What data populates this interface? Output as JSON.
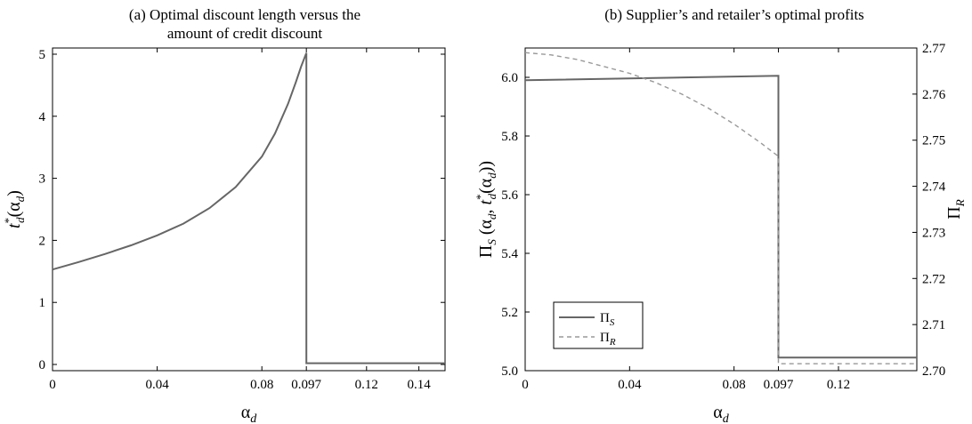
{
  "chart_data": [
    {
      "type": "line",
      "title": "(a) Optimal discount length versus the amount of credit discount",
      "title_lines": [
        "(a) Optimal discount length versus the",
        "amount of credit discount"
      ],
      "xlabel": "α_d",
      "ylabel": "t*_d(α_d)",
      "xlim": [
        0,
        0.15
      ],
      "ylim": [
        -0.1,
        5.1
      ],
      "xticks": [
        0,
        0.04,
        0.08,
        0.097,
        0.12,
        0.14
      ],
      "xtick_labels": [
        "0",
        "0.04",
        "0.08",
        "0.097",
        "0.12",
        "0.14"
      ],
      "yticks": [
        0,
        1,
        2,
        3,
        4,
        5
      ],
      "ytick_labels": [
        "0",
        "1",
        "2",
        "3",
        "4",
        "5"
      ],
      "grid": false,
      "color": "#666666",
      "series": [
        {
          "x": [
            0,
            0.01,
            0.02,
            0.03,
            0.04,
            0.05,
            0.06,
            0.07,
            0.08,
            0.085,
            0.09,
            0.093,
            0.095,
            0.097,
            0.097,
            0.15
          ],
          "y": [
            1.53,
            1.65,
            1.78,
            1.92,
            2.08,
            2.27,
            2.52,
            2.86,
            3.35,
            3.72,
            4.2,
            4.55,
            4.8,
            5.02,
            0.02,
            0.02
          ]
        }
      ]
    },
    {
      "type": "line",
      "title": "(b) Supplier’s and retailer’s optimal profits",
      "xlabel": "α_d",
      "ylabel": "Π_S(α_d, t*_d(α_d))",
      "ylabel_right": "Π_R",
      "xlim": [
        0,
        0.15
      ],
      "ylim": [
        5.0,
        6.1
      ],
      "ylim_right": [
        2.7,
        2.77
      ],
      "xticks": [
        0,
        0.04,
        0.08,
        0.097,
        0.12
      ],
      "xtick_labels": [
        "0",
        "0.04",
        "0.08",
        "0.097",
        "0.12"
      ],
      "yticks": [
        5.0,
        5.2,
        5.4,
        5.6,
        5.8,
        6.0
      ],
      "ytick_labels": [
        "5.0",
        "5.2",
        "5.4",
        "5.6",
        "5.8",
        "6.0"
      ],
      "yticks_right": [
        2.7,
        2.71,
        2.72,
        2.73,
        2.74,
        2.75,
        2.76,
        2.77
      ],
      "ytick_labels_right": [
        "2.70",
        "2.71",
        "2.72",
        "2.73",
        "2.74",
        "2.75",
        "2.76",
        "2.77"
      ],
      "legend": "bottom-left",
      "grid": false,
      "series": [
        {
          "name": "Π_S",
          "axis": "left",
          "style": "solid",
          "color": "#666666",
          "x": [
            0,
            0.097,
            0.097,
            0.15
          ],
          "y": [
            5.99,
            6.005,
            5.045,
            5.045
          ]
        },
        {
          "name": "Π_R",
          "axis": "right",
          "style": "dashed",
          "color": "#999999",
          "x": [
            0,
            0.01,
            0.02,
            0.03,
            0.04,
            0.05,
            0.06,
            0.07,
            0.08,
            0.09,
            0.097,
            0.097,
            0.15
          ],
          "y": [
            2.769,
            2.7685,
            2.7675,
            2.766,
            2.7645,
            2.7625,
            2.76,
            2.757,
            2.7535,
            2.7495,
            2.7465,
            2.7015,
            2.7015
          ]
        }
      ]
    }
  ]
}
